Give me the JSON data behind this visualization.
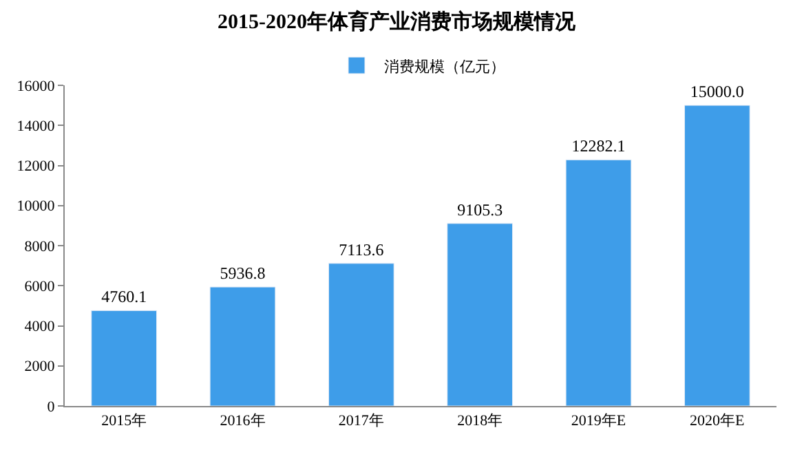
{
  "chart_data": {
    "type": "bar",
    "title": "2015-2020年体育产业消费市场规模情况",
    "categories": [
      "2015年",
      "2016年",
      "2017年",
      "2018年",
      "2019年E",
      "2020年E"
    ],
    "series": [
      {
        "name": "消费规模（亿元）",
        "color": "#3e9de9",
        "values": [
          4760.1,
          5936.8,
          7113.6,
          9105.3,
          12282.1,
          15000.0
        ]
      }
    ],
    "value_labels": [
      "4760.1",
      "5936.8",
      "7113.6",
      "9105.3",
      "12282.1",
      "15000.0"
    ],
    "ylim": [
      0,
      16000
    ],
    "yticks": [
      0,
      2000,
      4000,
      6000,
      8000,
      10000,
      12000,
      14000,
      16000
    ],
    "legend": "top"
  }
}
